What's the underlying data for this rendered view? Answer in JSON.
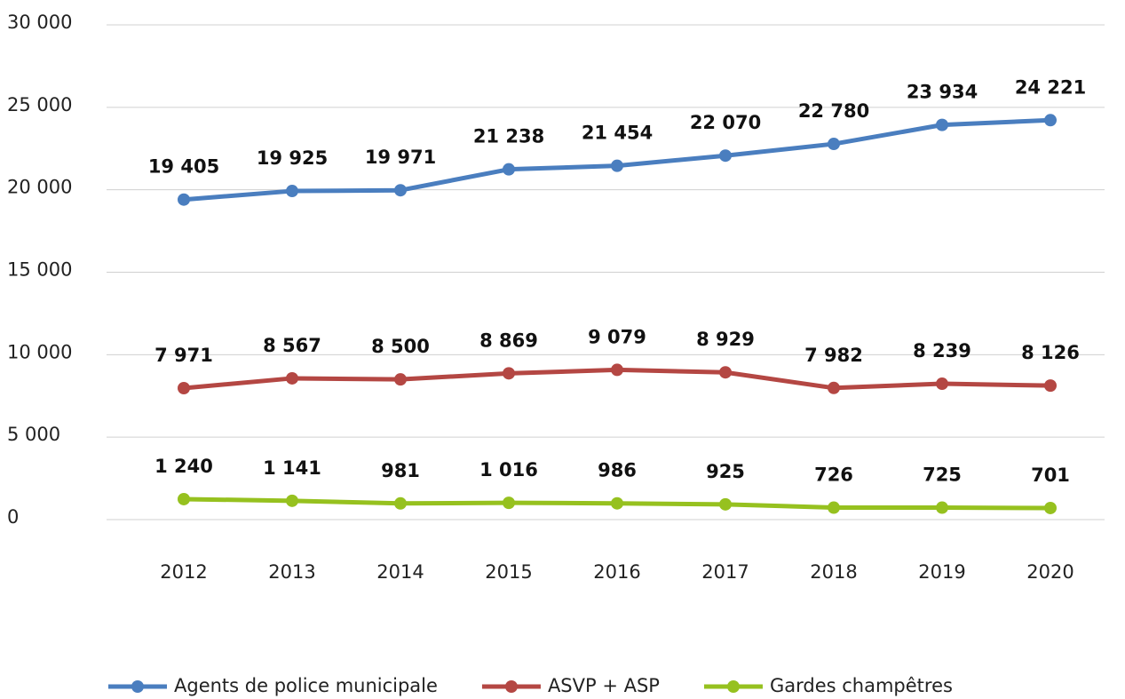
{
  "chart_data": {
    "type": "line",
    "categories": [
      "2012",
      "2013",
      "2014",
      "2015",
      "2016",
      "2017",
      "2018",
      "2019",
      "2020"
    ],
    "series": [
      {
        "name": "Agents de police municipale",
        "color": "#4a7ebf",
        "values": [
          19405,
          19925,
          19971,
          21238,
          21454,
          22070,
          22780,
          23934,
          24221
        ],
        "value_labels": [
          "19 405",
          "19 925",
          "19 971",
          "21 238",
          "21 454",
          "22 070",
          "22 780",
          "23 934",
          "24 221"
        ]
      },
      {
        "name": "ASVP + ASP",
        "color": "#b44743",
        "values": [
          7971,
          8567,
          8500,
          8869,
          9079,
          8929,
          7982,
          8239,
          8126
        ],
        "value_labels": [
          "7 971",
          "8 567",
          "8 500",
          "8 869",
          "9 079",
          "8 929",
          "7 982",
          "8 239",
          "8 126"
        ]
      },
      {
        "name": "Gardes champêtres",
        "color": "#96c11f",
        "values": [
          1240,
          1141,
          981,
          1016,
          986,
          925,
          726,
          725,
          701
        ],
        "value_labels": [
          "1 240",
          "1 141",
          "981",
          "1 016",
          "986",
          "925",
          "726",
          "725",
          "701"
        ]
      }
    ],
    "ylim": [
      0,
      30000
    ],
    "yticks": [
      0,
      {
        "value": 5000,
        "label": "5 000"
      },
      {
        "value": 10000,
        "label": "10 000"
      },
      {
        "value": 15000,
        "label": "15 000"
      },
      {
        "value": 20000,
        "label": "20 000"
      },
      {
        "value": 25000,
        "label": "25 000"
      },
      {
        "value": 30000,
        "label": "30 000"
      }
    ],
    "grid": true,
    "legend": "bottom"
  }
}
